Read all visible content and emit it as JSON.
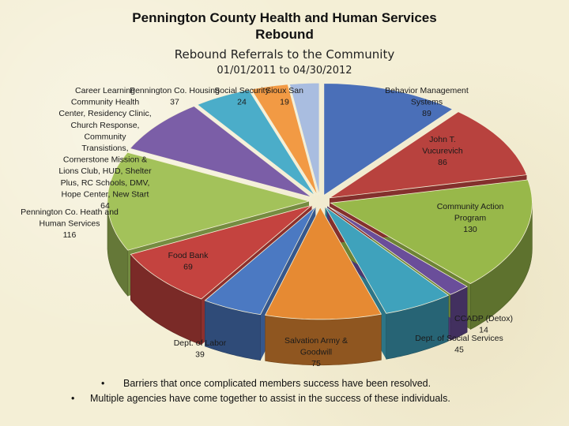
{
  "title_line1": "Pennington County Health and Human Services",
  "title_line2": "Rebound",
  "colors": {
    "background": "#f4efd6"
  },
  "chart_data": {
    "type": "pie",
    "title": "Rebound Referrals to the Community",
    "subtitle": "01/01/2011 to 04/30/2012",
    "slices": [
      {
        "label": "Behavior Management Systems",
        "value": 89,
        "color": "#4a6fb8"
      },
      {
        "label": "John T. Vucurevich",
        "value": 86,
        "color": "#b8423e"
      },
      {
        "label": "Community Action Program",
        "value": 130,
        "color": "#98b84a"
      },
      {
        "label": "CCADP (Detox)",
        "value": 14,
        "color": "#6a4e9a"
      },
      {
        "label": "Dept. of Social Services",
        "value": 45,
        "color": "#3fa2bc"
      },
      {
        "label": "Salvation Army & Goodwill",
        "value": 75,
        "color": "#e68a33"
      },
      {
        "label": "Dept. of Labor",
        "value": 39,
        "color": "#4b79c2"
      },
      {
        "label": "Food Bank",
        "value": 69,
        "color": "#c4433f"
      },
      {
        "label": "Pennington Co. Heath and Human Services",
        "value": 116,
        "color": "#a3c25a"
      },
      {
        "label": "Career Learning Center, Community Health Center, Residency Clinic, Church Response, Community Transistions, Cornerstone Mission & Lions Club, HUD, Shelter Plus, RC Schools, DMV, Hope Center, New Start",
        "value": 64,
        "color": "#7b5ea7"
      },
      {
        "label": "Pennington Co. Housing",
        "value": 37,
        "color": "#4badc9"
      },
      {
        "label": "Social Security",
        "value": 24,
        "color": "#f29a44"
      },
      {
        "label": "Sioux San",
        "value": 19,
        "color": "#a9bde0"
      }
    ]
  },
  "labels": [
    {
      "lines": [
        "Behavior Management",
        "Systems",
        "89"
      ]
    },
    {
      "lines": [
        "John T.",
        "Vucurevich",
        "86"
      ]
    },
    {
      "lines": [
        "Community Action",
        "Program",
        "130"
      ]
    },
    {
      "lines": [
        "CCADP (Detox)",
        "14"
      ]
    },
    {
      "lines": [
        "Dept. of Social Services",
        "45"
      ]
    },
    {
      "lines": [
        "Salvation Army &",
        "Goodwill",
        "75"
      ]
    },
    {
      "lines": [
        "Dept. of Labor",
        "39"
      ]
    },
    {
      "lines": [
        "Food Bank",
        "69"
      ]
    },
    {
      "lines": [
        "Pennington Co. Heath and",
        "Human Services",
        "116"
      ]
    },
    {
      "lines": [
        "Career Learning",
        "Community Health",
        "Center, Residency Clinic,",
        "Church Response,",
        "Community",
        "Transistions,",
        "Cornerstone Mission &",
        "Lions Club, HUD, Shelter",
        "Plus, RC Schools, DMV,",
        "Hope Center, New Start",
        "64"
      ]
    },
    {
      "lines": [
        "Pennington Co. Housing",
        "37"
      ]
    },
    {
      "lines": [
        "Social Security",
        "24"
      ]
    },
    {
      "lines": [
        "Sioux San",
        "19"
      ]
    }
  ],
  "bullets": [
    "Barriers that once complicated members success have been resolved.",
    "Multiple agencies have come together to assist in the success of these individuals."
  ]
}
